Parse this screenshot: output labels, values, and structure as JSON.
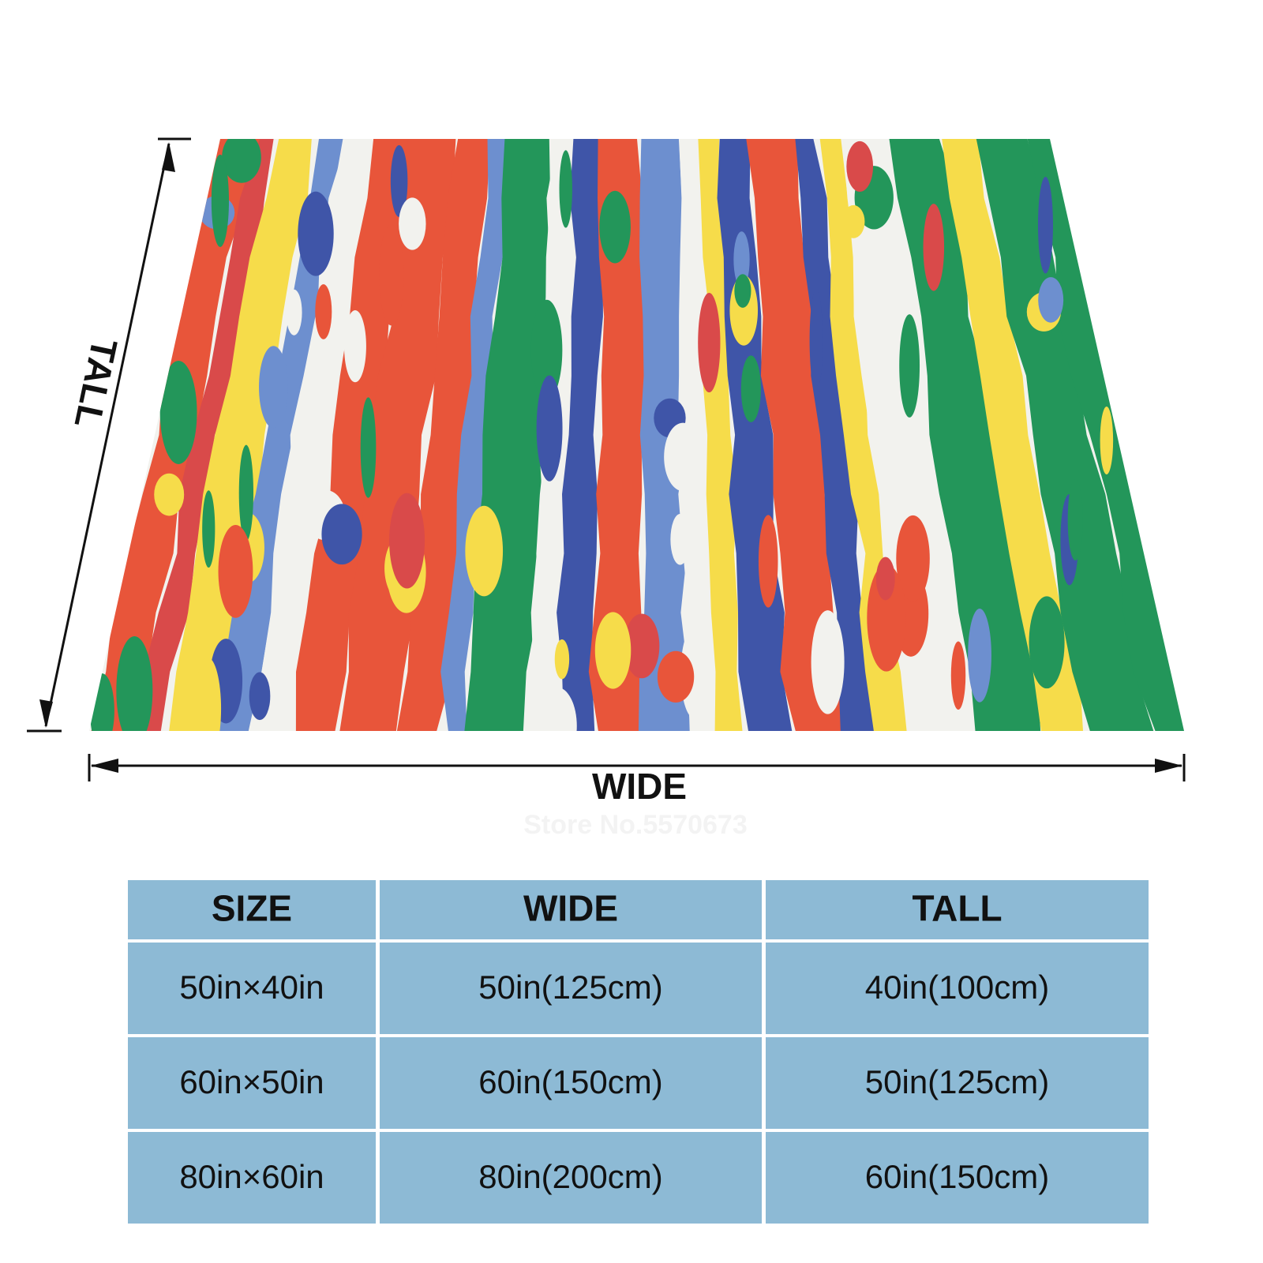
{
  "dimensions": {
    "tall": "TALL",
    "wide": "WIDE",
    "watermark": "Store No.5570673"
  },
  "table": {
    "header": [
      "SIZE",
      "WIDE",
      "TALL"
    ],
    "rows": [
      [
        "50in×40in",
        "50in(125cm)",
        "40in(100cm)"
      ],
      [
        "60in×50in",
        "60in(150cm)",
        "50in(125cm)"
      ],
      [
        "80in×60in",
        "80in(200cm)",
        "60in(150cm)"
      ]
    ]
  }
}
